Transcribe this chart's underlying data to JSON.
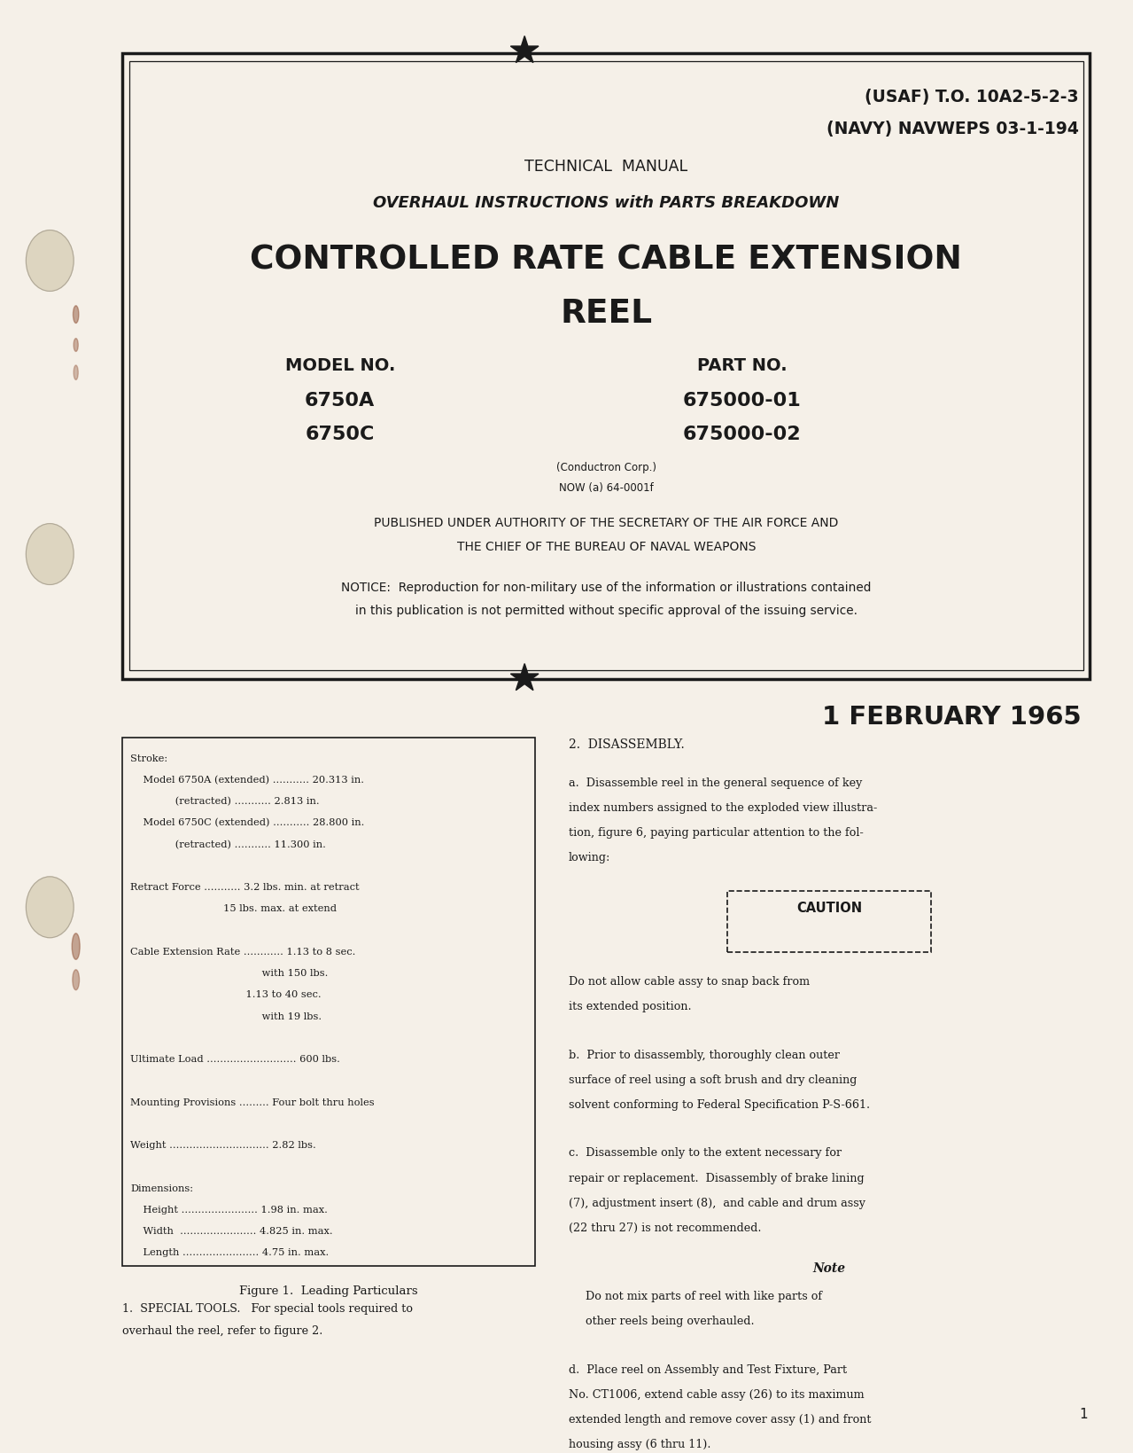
{
  "bg_color": "#f5f0e8",
  "border_color": "#1a1a1a",
  "text_color": "#1a1a1a",
  "usaf_line": "(USAF) T.O. 10A2-5-2-3",
  "navy_line": "(NAVY) NAVWEPS 03-1-194",
  "tech_manual": "TECHNICAL  MANUAL",
  "subtitle_italic": "OVERHAUL INSTRUCTIONS with PARTS BREAKDOWN",
  "main_title_line1": "CONTROLLED RATE CABLE EXTENSION",
  "main_title_line2": "REEL",
  "model_label": "MODEL NO.",
  "model_values": [
    "6750A",
    "6750C"
  ],
  "part_label": "PART NO.",
  "part_values": [
    "675000-01",
    "675000-02"
  ],
  "conductron": "(Conductron Corp.)",
  "now_line": "NOW (a) 64-0001f",
  "published_line1": "PUBLISHED UNDER AUTHORITY OF THE SECRETARY OF THE AIR FORCE AND",
  "published_line2": "THE CHIEF OF THE BUREAU OF NAVAL WEAPONS",
  "notice_line1": "NOTICE:  Reproduction for non-military use of the information or illustrations contained",
  "notice_line2": "in this publication is not permitted without specific approval of the issuing service.",
  "date_line": "1 FEBRUARY 1965",
  "figure_box_content": [
    "Stroke:",
    "    Model 6750A (extended) ........... 20.313 in.",
    "              (retracted) ........... 2.813 in.",
    "    Model 6750C (extended) ........... 28.800 in.",
    "              (retracted) ........... 11.300 in.",
    "",
    "Retract Force ........... 3.2 lbs. min. at retract",
    "                             15 lbs. max. at extend",
    "",
    "Cable Extension Rate ............ 1.13 to 8 sec.",
    "                                         with 150 lbs.",
    "                                    1.13 to 40 sec.",
    "                                         with 19 lbs.",
    "",
    "Ultimate Load ........................... 600 lbs.",
    "",
    "Mounting Provisions ......... Four bolt thru holes",
    "",
    "Weight .............................. 2.82 lbs.",
    "",
    "Dimensions:",
    "    Height ....................... 1.98 in. max.",
    "    Width  ....................... 4.825 in. max.",
    "    Length ....................... 4.75 in. max."
  ],
  "figure_caption": "Figure 1.  Leading Particulars",
  "special_tools_1": "1.  SPECIAL TOOLS.   For special tools required to",
  "special_tools_2": "overhaul the reel, refer to figure 2.",
  "disassembly_title": "2.  DISASSEMBLY.",
  "disassembly_a": [
    "a.  Disassemble reel in the general sequence of key",
    "index numbers assigned to the exploded view illustra-",
    "tion, figure 6, paying particular attention to the fol-",
    "lowing:"
  ],
  "caution_label": "CAUTION",
  "caution_text": [
    "Do not allow cable assy to snap back from",
    "its extended position."
  ],
  "disassembly_b": [
    "b.  Prior to disassembly, thoroughly clean outer",
    "surface of reel using a soft brush and dry cleaning",
    "solvent conforming to Federal Specification P-S-661."
  ],
  "disassembly_c": [
    "c.  Disassemble only to the extent necessary for",
    "repair or replacement.  Disassembly of brake lining",
    "(7), adjustment insert (8),  and cable and drum assy",
    "(22 thru 27) is not recommended."
  ],
  "note_title": "Note",
  "note_text": [
    "Do not mix parts of reel with like parts of",
    "other reels being overhauled."
  ],
  "disassembly_d": [
    "d.  Place reel on Assembly and Test Fixture, Part",
    "No. CT1006, extend cable assy (26) to its maximum",
    "extended length and remove cover assy (1) and front",
    "housing assy (6 thru 11)."
  ],
  "page_number": "1"
}
